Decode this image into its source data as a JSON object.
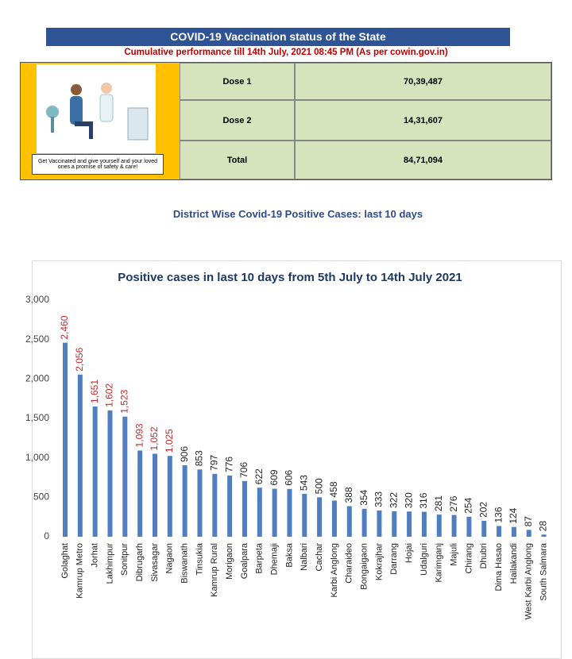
{
  "header": {
    "title": "COVID-19 Vaccination status of the State",
    "subtitle": "Cumulative performance till 14th July, 2021 08:45 PM (As per cowin.gov.in)"
  },
  "poster": {
    "caption": "Get Vaccinated and give yourself and your loved ones a promise of safety & care!"
  },
  "table": {
    "rows": [
      [
        "Dose 1",
        "70,39,487"
      ],
      [
        "Dose 2",
        "14,31,607"
      ],
      [
        "Total",
        "84,71,094"
      ]
    ]
  },
  "section": {
    "title": "District Wise Covid-19 Positive Cases: last 10 days"
  },
  "chart_data": {
    "type": "bar",
    "title": "Positive cases in last 10 days from 5th July to 14th July 2021",
    "categories": [
      "Golaghat",
      "Kamrup Metro",
      "Jorhat",
      "Lakhimpur",
      "Sonitpur",
      "Dibrugarh",
      "Sivasagar",
      "Nagaon",
      "Biswanath",
      "Tinsukia",
      "Kamrup Rural",
      "Morigaon",
      "Goalpara",
      "Barpeta",
      "Dhemaji",
      "Baksa",
      "Nalbari",
      "Cachar",
      "Karbi Anglong",
      "Charaideo",
      "Bongaigaon",
      "Kokrajhar",
      "Darrang",
      "Hojai",
      "Udalguri",
      "Karimganj",
      "Majuli",
      "Chirang",
      "Dhubri",
      "Dima Hasao",
      "Hailakandi",
      "West Karbi Anglong",
      "South Salmara"
    ],
    "values": [
      2460,
      2056,
      1651,
      1602,
      1523,
      1093,
      1052,
      1025,
      906,
      853,
      797,
      776,
      706,
      622,
      609,
      606,
      543,
      500,
      458,
      388,
      354,
      333,
      322,
      320,
      316,
      281,
      276,
      254,
      202,
      136,
      124,
      87,
      28
    ],
    "value_labels": [
      "2,460",
      "2,056",
      "1,651",
      "1,602",
      "1,523",
      "1,093",
      "1,052",
      "1,025",
      "906",
      "853",
      "797",
      "776",
      "706",
      "622",
      "609",
      "606",
      "543",
      "500",
      "458",
      "388",
      "354",
      "333",
      "322",
      "320",
      "316",
      "281",
      "276",
      "254",
      "202",
      "136",
      "124",
      "87",
      "28"
    ],
    "label_colors": [
      "#c0282d",
      "#c0282d",
      "#c0282d",
      "#c0282d",
      "#c0282d",
      "#c0282d",
      "#c0282d",
      "#c0282d",
      "#222",
      "#222",
      "#222",
      "#222",
      "#222",
      "#222",
      "#222",
      "#222",
      "#222",
      "#222",
      "#222",
      "#222",
      "#222",
      "#222",
      "#222",
      "#222",
      "#222",
      "#222",
      "#222",
      "#222",
      "#222",
      "#222",
      "#222",
      "#222",
      "#222"
    ],
    "color": "#4f7fc0",
    "ylim": [
      0,
      3000
    ],
    "yticks": [
      0,
      500,
      {
        "value": 1000,
        "label": "1,000"
      },
      {
        "value": 1500,
        "label": "1,500"
      },
      {
        "value": 2000,
        "label": "2,000"
      },
      {
        "value": 2500,
        "label": "2,500"
      },
      {
        "value": 3000,
        "label": "3,000"
      }
    ]
  }
}
